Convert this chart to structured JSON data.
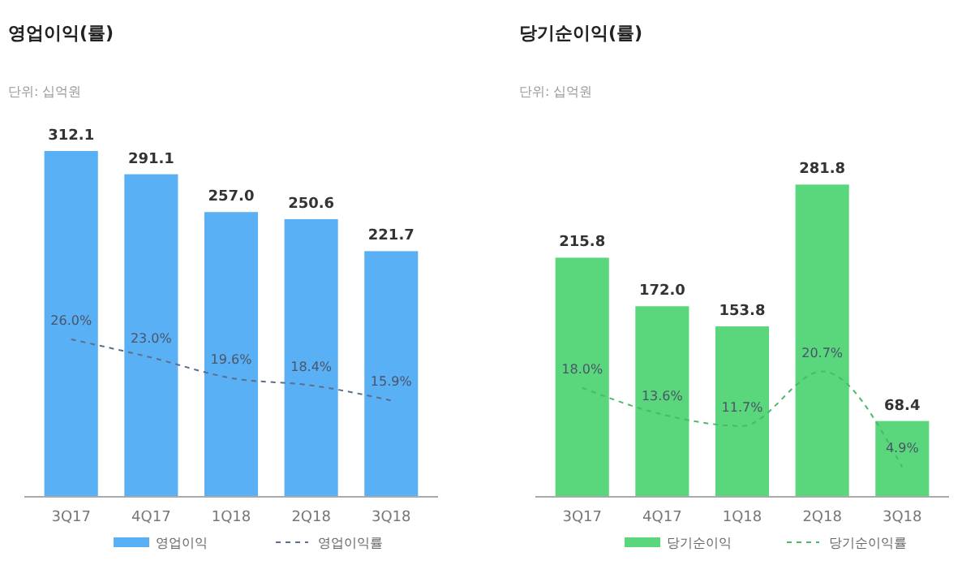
{
  "chart_data": [
    {
      "type": "bar",
      "title": "영업이익(률)",
      "subtitle": "단위: 십억원",
      "categories": [
        "3Q17",
        "4Q17",
        "1Q18",
        "2Q18",
        "3Q18"
      ],
      "tick_labels": "x",
      "legend": "bottom",
      "series": [
        {
          "name": "영업이익",
          "color": "#5ab0f5",
          "values": [
            312.1,
            291.1,
            257.0,
            250.6,
            221.7
          ],
          "value_labels": [
            "312.1",
            "291.1",
            "257.0",
            "250.6",
            "221.7"
          ]
        },
        {
          "name": "영업이익률",
          "type": "line",
          "axis": "y2",
          "line_style": "dashed",
          "color": "#5a6e8c",
          "values": [
            26.0,
            23.0,
            19.6,
            18.4,
            15.9
          ],
          "value_labels": [
            "26.0%",
            "23.0%",
            "19.6%",
            "18.4%",
            "15.9%"
          ]
        }
      ]
    },
    {
      "type": "bar",
      "title": "당기순이익(률)",
      "subtitle": "단위: 십억원",
      "categories": [
        "3Q17",
        "4Q17",
        "1Q18",
        "2Q18",
        "3Q18"
      ],
      "tick_labels": "x",
      "legend": "bottom",
      "series": [
        {
          "name": "당기순이익",
          "color": "#5ad67c",
          "values": [
            215.8,
            172.0,
            153.8,
            281.8,
            68.4
          ],
          "value_labels": [
            "215.8",
            "172.0",
            "153.8",
            "281.8",
            "68.4"
          ]
        },
        {
          "name": "당기순이익률",
          "type": "line",
          "axis": "y2",
          "line_style": "dashed",
          "color": "#4cb868",
          "values": [
            18.0,
            13.6,
            11.7,
            20.7,
            4.9
          ],
          "value_labels": [
            "18.0%",
            "13.6%",
            "11.7%",
            "20.7%",
            "4.9%"
          ]
        }
      ]
    }
  ]
}
